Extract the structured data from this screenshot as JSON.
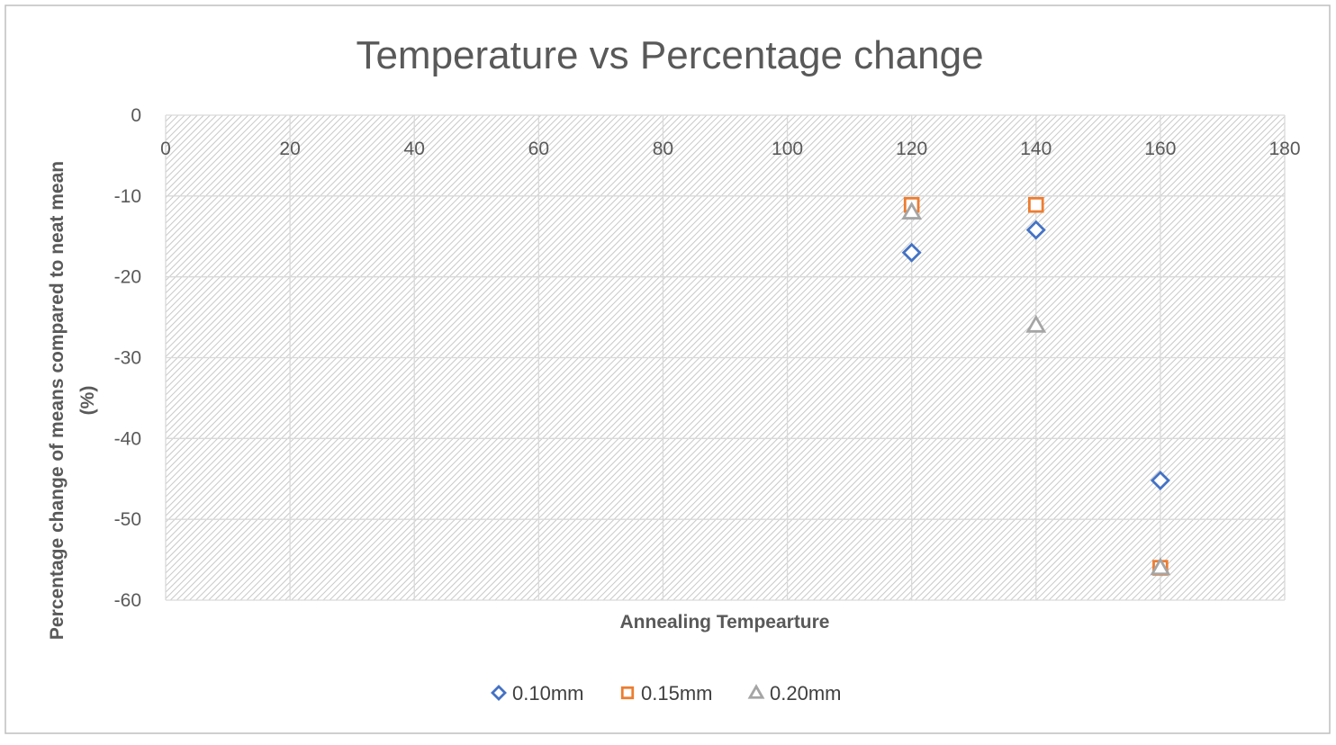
{
  "chart_data": {
    "type": "scatter",
    "title": "Temperature vs Percentage change",
    "xlabel": "Annealing Tempearture",
    "ylabel_lines": [
      "Percentage change of means compared to neat mean",
      "(%)"
    ],
    "xlim": [
      0,
      180
    ],
    "ylim": [
      -60,
      0
    ],
    "xticks": [
      0,
      20,
      40,
      60,
      80,
      100,
      120,
      140,
      160,
      180
    ],
    "yticks": [
      0,
      -10,
      -20,
      -30,
      -40,
      -50,
      -60
    ],
    "xtick_position": "top",
    "plot_area_pattern": "diagonal-hatch",
    "legend_position": "bottom",
    "series": [
      {
        "name": "0.10mm",
        "marker": "diamond",
        "color": "#4472c4",
        "x": [
          120,
          140,
          160
        ],
        "y": [
          -17,
          -14.2,
          -45.2
        ]
      },
      {
        "name": "0.15mm",
        "marker": "square",
        "color": "#ed7d31",
        "x": [
          120,
          140,
          160
        ],
        "y": [
          -11.1,
          -11.1,
          -56
        ]
      },
      {
        "name": "0.20mm",
        "marker": "triangle",
        "color": "#a5a5a5",
        "x": [
          120,
          140,
          160
        ],
        "y": [
          -12,
          -26,
          -56
        ]
      }
    ]
  }
}
